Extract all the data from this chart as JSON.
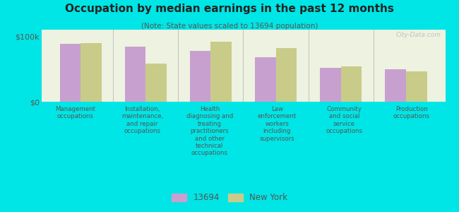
{
  "title": "Occupation by median earnings in the past 12 months",
  "subtitle": "(Note: State values scaled to 13694 population)",
  "categories": [
    "Management\noccupations",
    "Installation,\nmaintenance,\nand repair\noccupations",
    "Health\ndiagnosing and\ntreating\npractitioners\nand other\ntechnical\noccupations",
    "Law\nenforcement\nworkers\nincluding\nsupervisors",
    "Community\nand social\nservice\noccupations",
    "Production\noccupations"
  ],
  "values_13694": [
    88000,
    84000,
    78000,
    68000,
    52000,
    50000
  ],
  "values_ny": [
    90000,
    58000,
    92000,
    82000,
    54000,
    46000
  ],
  "color_13694": "#c8a0d0",
  "color_ny": "#c8cc88",
  "background_color": "#00e5e5",
  "plot_bg_color": "#eef2e0",
  "ylabel_ticks": [
    "$0",
    "$100k"
  ],
  "ylim": [
    0,
    110000
  ],
  "yticks": [
    0,
    100000
  ],
  "legend_13694": "13694",
  "legend_ny": "New York",
  "watermark": "City-Data.com"
}
